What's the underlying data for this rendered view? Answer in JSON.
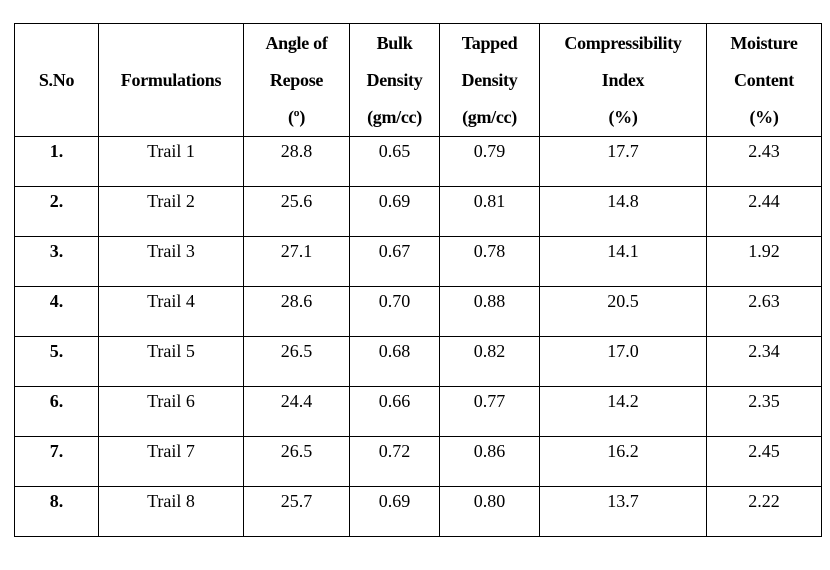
{
  "table": {
    "headers": [
      [
        "S.No"
      ],
      [
        "Formulations"
      ],
      [
        "Angle of",
        "Repose",
        "(º)"
      ],
      [
        "Bulk",
        "Density",
        "(gm/cc)"
      ],
      [
        "Tapped",
        "Density",
        "(gm/cc)"
      ],
      [
        "Compressibility",
        "Index",
        "(%)"
      ],
      [
        "Moisture",
        "Content",
        "(%)"
      ]
    ],
    "rows": [
      [
        "1.",
        "Trail 1",
        "28.8",
        "0.65",
        "0.79",
        "17.7",
        "2.43"
      ],
      [
        "2.",
        "Trail 2",
        "25.6",
        "0.69",
        "0.81",
        "14.8",
        "2.44"
      ],
      [
        "3.",
        "Trail 3",
        "27.1",
        "0.67",
        "0.78",
        "14.1",
        "1.92"
      ],
      [
        "4.",
        "Trail 4",
        "28.6",
        "0.70",
        "0.88",
        "20.5",
        "2.63"
      ],
      [
        "5.",
        "Trail 5",
        "26.5",
        "0.68",
        "0.82",
        "17.0",
        "2.34"
      ],
      [
        "6.",
        "Trail 6",
        "24.4",
        "0.66",
        "0.77",
        "14.2",
        "2.35"
      ],
      [
        "7.",
        "Trail 7",
        "26.5",
        "0.72",
        "0.86",
        "16.2",
        "2.45"
      ],
      [
        "8.",
        "Trail 8",
        "25.7",
        "0.69",
        "0.80",
        "13.7",
        "2.22"
      ]
    ]
  }
}
